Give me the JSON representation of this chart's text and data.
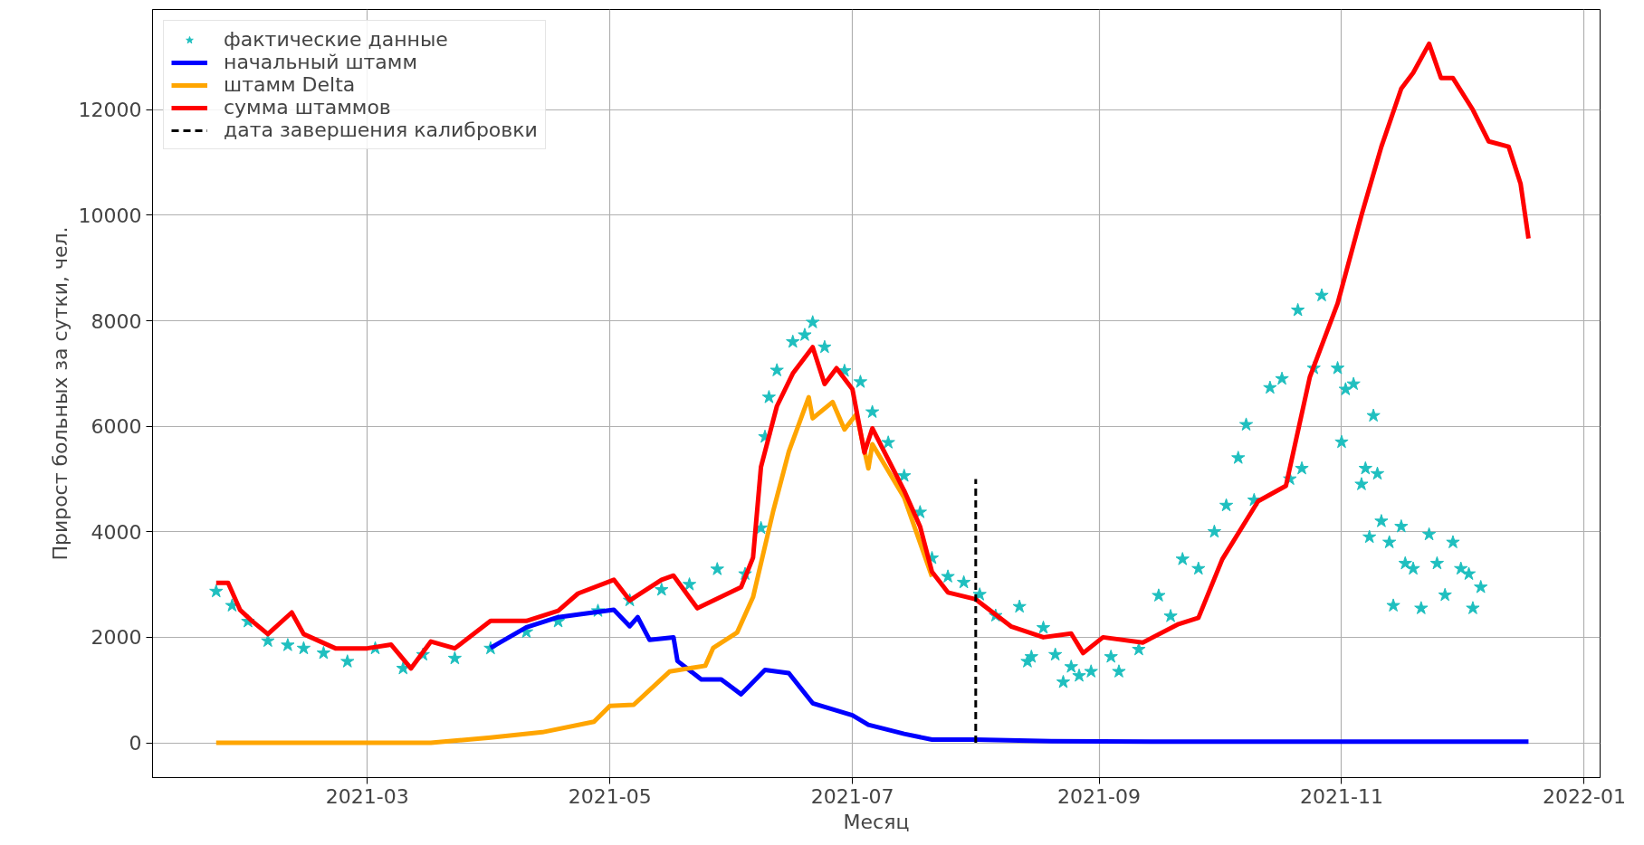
{
  "chart_data": {
    "type": "line",
    "xlabel": "Месяц",
    "ylabel": "Прирост больных за сутки, чел.",
    "xlim": [
      "2021-01-06",
      "2022-01-05"
    ],
    "ylim": [
      -660,
      13900
    ],
    "xticks": [
      "2021-03",
      "2021-05",
      "2021-07",
      "2021-09",
      "2021-11",
      "2022-01"
    ],
    "yticks": [
      0,
      2000,
      4000,
      6000,
      8000,
      10000,
      12000
    ],
    "grid": true,
    "legend": "top left",
    "series": [
      {
        "name": "фактические данные",
        "type": "scatter",
        "marker": "star",
        "color": "#1fbfbf",
        "x": [
          "2021-01-22",
          "2021-01-26",
          "2021-01-30",
          "2021-02-04",
          "2021-02-09",
          "2021-02-13",
          "2021-02-18",
          "2021-02-24",
          "2021-03-03",
          "2021-03-10",
          "2021-03-15",
          "2021-03-23",
          "2021-04-01",
          "2021-04-10",
          "2021-04-18",
          "2021-04-28",
          "2021-05-06",
          "2021-05-14",
          "2021-05-21",
          "2021-05-28",
          "2021-06-04",
          "2021-06-08",
          "2021-06-09",
          "2021-06-10",
          "2021-06-12",
          "2021-06-16",
          "2021-06-19",
          "2021-06-21",
          "2021-06-24",
          "2021-06-29",
          "2021-07-03",
          "2021-07-06",
          "2021-07-10",
          "2021-07-14",
          "2021-07-18",
          "2021-07-21",
          "2021-07-25",
          "2021-07-29",
          "2021-08-02",
          "2021-08-06",
          "2021-08-12",
          "2021-08-14",
          "2021-08-15",
          "2021-08-18",
          "2021-08-21",
          "2021-08-23",
          "2021-08-25",
          "2021-08-27",
          "2021-08-30",
          "2021-09-04",
          "2021-09-06",
          "2021-09-11",
          "2021-09-16",
          "2021-09-19",
          "2021-09-22",
          "2021-09-26",
          "2021-09-30",
          "2021-10-03",
          "2021-10-06",
          "2021-10-08",
          "2021-10-10",
          "2021-10-14",
          "2021-10-17",
          "2021-10-19",
          "2021-10-21",
          "2021-10-22",
          "2021-10-25",
          "2021-10-27",
          "2021-10-31",
          "2021-11-01",
          "2021-11-02",
          "2021-11-04",
          "2021-11-06",
          "2021-11-07",
          "2021-11-08",
          "2021-11-09",
          "2021-11-10",
          "2021-11-11",
          "2021-11-13",
          "2021-11-14",
          "2021-11-16",
          "2021-11-17",
          "2021-11-19",
          "2021-11-21",
          "2021-11-23",
          "2021-11-25",
          "2021-11-27",
          "2021-11-29",
          "2021-12-01",
          "2021-12-03",
          "2021-12-04",
          "2021-12-06"
        ],
        "values": [
          2870,
          2600,
          2300,
          1930,
          1850,
          1790,
          1700,
          1540,
          1790,
          1410,
          1670,
          1600,
          1790,
          2100,
          2300,
          2500,
          2700,
          2900,
          3000,
          3290,
          3200,
          4070,
          5800,
          6550,
          7060,
          7600,
          7730,
          7970,
          7500,
          7050,
          6840,
          6270,
          5690,
          5060,
          4370,
          3500,
          3150,
          3040,
          2810,
          2410,
          2580,
          1540,
          1630,
          2180,
          1670,
          1150,
          1440,
          1270,
          1350,
          1630,
          1350,
          1770,
          2790,
          2400,
          3480,
          3300,
          4000,
          4500,
          5400,
          6030,
          4600,
          6730,
          6900,
          5000,
          8200,
          5200,
          7100,
          8480,
          7100,
          5700,
          6700,
          6800,
          4900,
          5200,
          3900,
          6200,
          5100,
          4200,
          3800,
          2600,
          4100,
          3400,
          3300,
          2550,
          3950,
          3400,
          2800,
          3800,
          3300,
          3200,
          2550,
          2950
        ]
      },
      {
        "name": "начальный штамм",
        "color": "#0000ff",
        "x": [
          "2021-04-01",
          "2021-04-10",
          "2021-04-18",
          "2021-04-23",
          "2021-05-02",
          "2021-05-06",
          "2021-05-08",
          "2021-05-11",
          "2021-05-17",
          "2021-05-18",
          "2021-05-24",
          "2021-05-29",
          "2021-06-03",
          "2021-06-09",
          "2021-06-15",
          "2021-06-21",
          "2021-07-01",
          "2021-07-05",
          "2021-07-14",
          "2021-07-21",
          "2021-08-01",
          "2021-08-20",
          "2021-09-15",
          "2021-10-15",
          "2021-11-15",
          "2021-12-18"
        ],
        "values": [
          1800,
          2190,
          2380,
          2430,
          2520,
          2210,
          2380,
          1950,
          2000,
          1550,
          1200,
          1200,
          920,
          1380,
          1320,
          750,
          520,
          340,
          170,
          60,
          60,
          30,
          20,
          20,
          20,
          20
        ]
      },
      {
        "name": "штамм Delta",
        "color": "#ffa500",
        "x": [
          "2021-01-22",
          "2021-03-17",
          "2021-04-01",
          "2021-04-14",
          "2021-04-27",
          "2021-05-01",
          "2021-05-07",
          "2021-05-16",
          "2021-05-25",
          "2021-05-27",
          "2021-06-02",
          "2021-06-06",
          "2021-06-11",
          "2021-06-15",
          "2021-06-20",
          "2021-06-21",
          "2021-06-26",
          "2021-06-29",
          "2021-07-02",
          "2021-07-05",
          "2021-07-06",
          "2021-07-14",
          "2021-07-21"
        ],
        "values": [
          0,
          0,
          100,
          200,
          400,
          700,
          720,
          1350,
          1460,
          1800,
          2090,
          2760,
          4370,
          5520,
          6550,
          6150,
          6460,
          5940,
          6230,
          5200,
          5660,
          4650,
          3150
        ]
      },
      {
        "name": "сумма штаммов",
        "color": "#ff0000",
        "x": [
          "2021-01-22",
          "2021-01-25",
          "2021-01-28",
          "2021-01-31",
          "2021-02-04",
          "2021-02-10",
          "2021-02-13",
          "2021-02-21",
          "2021-03-01",
          "2021-03-07",
          "2021-03-12",
          "2021-03-17",
          "2021-03-23",
          "2021-04-01",
          "2021-04-10",
          "2021-04-18",
          "2021-04-23",
          "2021-05-02",
          "2021-05-06",
          "2021-05-14",
          "2021-05-17",
          "2021-05-23",
          "2021-06-03",
          "2021-06-06",
          "2021-06-08",
          "2021-06-12",
          "2021-06-16",
          "2021-06-21",
          "2021-06-24",
          "2021-06-27",
          "2021-07-01",
          "2021-07-04",
          "2021-07-06",
          "2021-07-14",
          "2021-07-18",
          "2021-07-21",
          "2021-07-25",
          "2021-08-01",
          "2021-08-10",
          "2021-08-18",
          "2021-08-25",
          "2021-08-28",
          "2021-09-02",
          "2021-09-12",
          "2021-09-21",
          "2021-09-26",
          "2021-10-02",
          "2021-10-11",
          "2021-10-18",
          "2021-10-24",
          "2021-10-31",
          "2021-11-06",
          "2021-11-11",
          "2021-11-16",
          "2021-11-19",
          "2021-11-23",
          "2021-11-26",
          "2021-11-29",
          "2021-12-04",
          "2021-12-08",
          "2021-12-13",
          "2021-12-16",
          "2021-12-18"
        ],
        "values": [
          3030,
          3030,
          2520,
          2310,
          2060,
          2470,
          2060,
          1790,
          1790,
          1860,
          1410,
          1920,
          1790,
          2310,
          2310,
          2500,
          2830,
          3090,
          2700,
          3090,
          3170,
          2550,
          2950,
          3510,
          5230,
          6380,
          7000,
          7500,
          6800,
          7100,
          6700,
          5500,
          5960,
          4780,
          4100,
          3240,
          2850,
          2720,
          2200,
          2000,
          2070,
          1700,
          2000,
          1900,
          2250,
          2370,
          3480,
          4580,
          4870,
          6930,
          8330,
          10000,
          11300,
          12400,
          12700,
          13250,
          12600,
          12600,
          12000,
          11400,
          11300,
          10600,
          9560
        ]
      },
      {
        "name": "дата завершения калибровки",
        "color": "#000000",
        "line_style": "dashed",
        "x": [
          "2021-08-01",
          "2021-08-01"
        ],
        "values": [
          0,
          5000
        ]
      }
    ]
  }
}
